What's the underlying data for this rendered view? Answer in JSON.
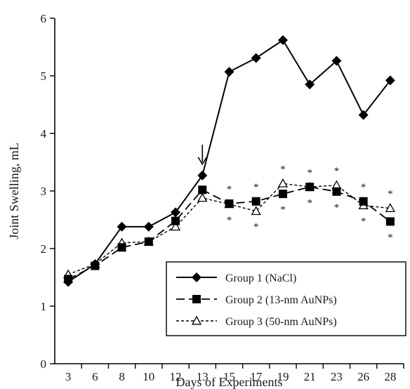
{
  "chart_data": {
    "type": "line",
    "xlabel": "Days of Experiments",
    "ylabel": "Joint Swelling, mL",
    "ylim": [
      0,
      6
    ],
    "y_ticks": [
      "0",
      "1",
      "2",
      "3",
      "4",
      "5",
      "6"
    ],
    "x_ticks": [
      "3",
      "6",
      "8",
      "10",
      "12",
      "13",
      "15",
      "17",
      "19",
      "21",
      "23",
      "26",
      "28"
    ],
    "legend_position": "bottom-right",
    "grid": false,
    "annotation": {
      "type": "arrow-down",
      "at_day": "13"
    },
    "significance_marker": "*",
    "series": [
      {
        "name": "Group 1 (NaCl)",
        "marker": "diamond-filled",
        "line": "solid",
        "color": "#000000",
        "values": [
          1.42,
          1.73,
          2.38,
          2.38,
          2.63,
          3.27,
          5.07,
          5.31,
          5.62,
          4.85,
          5.26,
          4.32,
          4.92
        ]
      },
      {
        "name": "Group 2 (13-nm AuNPs)",
        "marker": "square-filled",
        "line": "long-dash",
        "color": "#000000",
        "values": [
          1.47,
          1.7,
          2.02,
          2.12,
          2.48,
          3.02,
          2.78,
          2.82,
          2.95,
          3.07,
          2.99,
          2.82,
          2.47
        ],
        "significant_days": [
          "15",
          "17",
          "19",
          "21",
          "23",
          "26",
          "28"
        ]
      },
      {
        "name": "Group 3 (50-nm AuNPs)",
        "marker": "triangle-open",
        "line": "short-dash",
        "color": "#000000",
        "values": [
          1.55,
          1.73,
          2.1,
          2.12,
          2.38,
          2.88,
          2.77,
          2.65,
          3.13,
          3.07,
          3.1,
          2.75,
          2.7
        ],
        "significant_days": [
          "15",
          "17",
          "19",
          "21",
          "23",
          "26",
          "28"
        ]
      }
    ]
  }
}
